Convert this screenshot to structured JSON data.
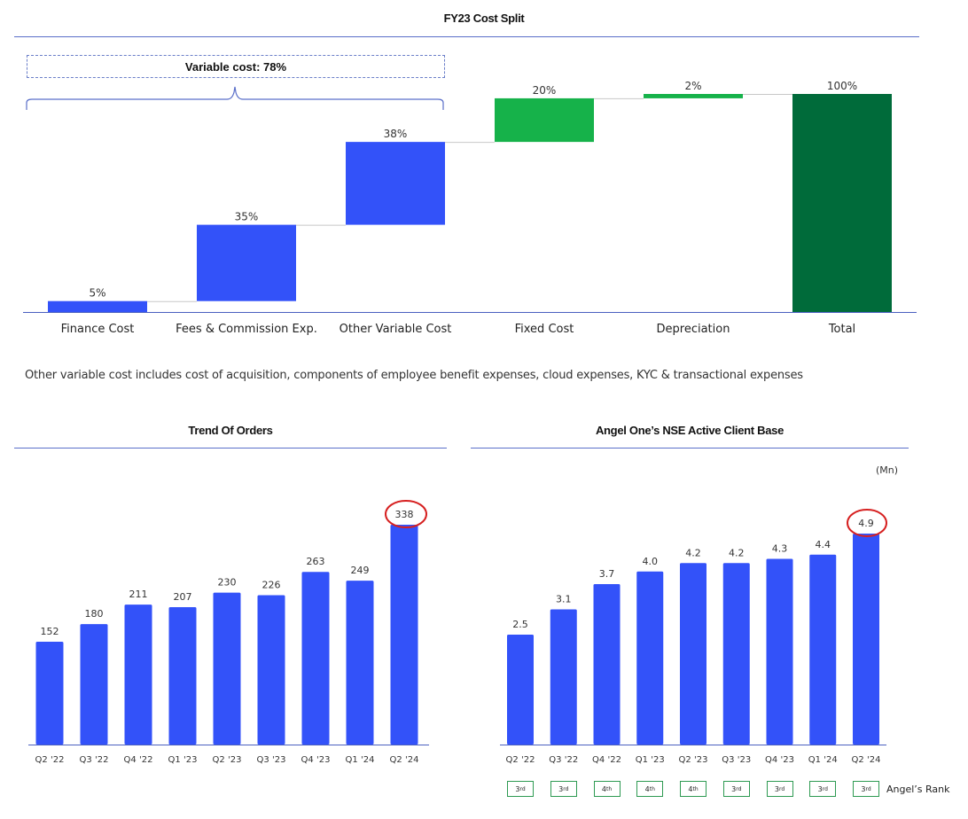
{
  "waterfall": {
    "title": "FY23 Cost Split",
    "bracket_label": "Variable cost: 78%",
    "footnote": "Other variable cost includes cost of acquisition, components of employee benefit expenses, cloud expenses, KYC & transactional expenses"
  },
  "orders": {
    "title": "Trend Of Orders"
  },
  "clients": {
    "title": "Angel One’s NSE Active Client Base",
    "unit": "(Mn)",
    "rank_label": "Angel’s Rank",
    "ranks": [
      "3rd",
      "3rd",
      "4th",
      "4th",
      "4th",
      "3rd",
      "3rd",
      "3rd",
      "3rd"
    ]
  },
  "colors": {
    "blue": "#3352f9",
    "light_green": "#16b24a",
    "dark_green": "#006b3a",
    "rule": "#5a6fc9",
    "highlight_circle": "#d62020"
  },
  "chart_data": [
    {
      "type": "bar",
      "subtype": "waterfall",
      "title": "FY23 Cost Split",
      "categories": [
        "Finance Cost",
        "Fees & Commission Exp.",
        "Other Variable Cost",
        "Fixed Cost",
        "Depreciation",
        "Total"
      ],
      "values": [
        5,
        35,
        38,
        20,
        2,
        100
      ],
      "labels": [
        "5%",
        "35%",
        "38%",
        "20%",
        "2%",
        "100%"
      ],
      "colors": [
        "#3352f9",
        "#3352f9",
        "#3352f9",
        "#16b24a",
        "#16b24a",
        "#006b3a"
      ],
      "ylim": [
        0,
        100
      ]
    },
    {
      "type": "bar",
      "title": "Trend Of Orders",
      "categories": [
        "Q2 '22",
        "Q3 '22",
        "Q4 '22",
        "Q1 '23",
        "Q2 '23",
        "Q3 '23",
        "Q4 '23",
        "Q1 '24",
        "Q2 '24"
      ],
      "values": [
        152,
        180,
        211,
        207,
        230,
        226,
        263,
        249,
        338
      ],
      "highlight": "Q2 '24"
    },
    {
      "type": "bar",
      "title": "Angel One’s NSE Active Client Base",
      "unit": "(Mn)",
      "categories": [
        "Q2 '22",
        "Q3 '22",
        "Q4 '22",
        "Q1 '23",
        "Q2 '23",
        "Q3 '23",
        "Q4 '23",
        "Q1 '24",
        "Q2 '24"
      ],
      "values": [
        2.5,
        3.1,
        3.7,
        4.0,
        4.2,
        4.2,
        4.3,
        4.4,
        4.9
      ],
      "labels": [
        "2.5",
        "3.1",
        "3.7",
        "4.0",
        "4.2",
        "4.2",
        "4.3",
        "4.4",
        "4.9"
      ],
      "highlight": "Q2 '24"
    }
  ]
}
